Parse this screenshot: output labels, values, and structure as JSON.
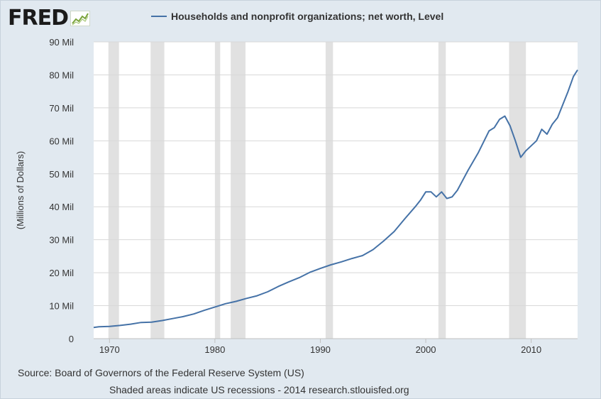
{
  "logo": {
    "text": "FRED"
  },
  "chart_data": {
    "type": "line",
    "title": "",
    "series": [
      {
        "name": "Households and nonprofit organizations; net worth, Level",
        "color": "#4572a7",
        "points": [
          [
            1968.5,
            3.4
          ],
          [
            1969,
            3.6
          ],
          [
            1970,
            3.7
          ],
          [
            1971,
            4.0
          ],
          [
            1972,
            4.4
          ],
          [
            1973,
            4.9
          ],
          [
            1974,
            5.0
          ],
          [
            1975,
            5.5
          ],
          [
            1976,
            6.1
          ],
          [
            1977,
            6.7
          ],
          [
            1978,
            7.5
          ],
          [
            1979,
            8.6
          ],
          [
            1980,
            9.6
          ],
          [
            1981,
            10.6
          ],
          [
            1982,
            11.3
          ],
          [
            1983,
            12.2
          ],
          [
            1984,
            13.0
          ],
          [
            1985,
            14.2
          ],
          [
            1986,
            15.8
          ],
          [
            1987,
            17.2
          ],
          [
            1988,
            18.5
          ],
          [
            1989,
            20.1
          ],
          [
            1990,
            21.3
          ],
          [
            1991,
            22.4
          ],
          [
            1992,
            23.3
          ],
          [
            1993,
            24.3
          ],
          [
            1994,
            25.2
          ],
          [
            1995,
            27.0
          ],
          [
            1996,
            29.6
          ],
          [
            1997,
            32.5
          ],
          [
            1998,
            36.3
          ],
          [
            1999,
            40.0
          ],
          [
            1999.5,
            42.0
          ],
          [
            2000,
            44.5
          ],
          [
            2000.5,
            44.5
          ],
          [
            2001,
            43.0
          ],
          [
            2001.5,
            44.5
          ],
          [
            2002,
            42.5
          ],
          [
            2002.5,
            43.0
          ],
          [
            2003,
            45.0
          ],
          [
            2004,
            51.0
          ],
          [
            2005,
            56.5
          ],
          [
            2006,
            63.0
          ],
          [
            2006.5,
            64.0
          ],
          [
            2007,
            66.5
          ],
          [
            2007.5,
            67.5
          ],
          [
            2008,
            64.5
          ],
          [
            2008.5,
            60.0
          ],
          [
            2009,
            55.0
          ],
          [
            2009.5,
            57.0
          ],
          [
            2010,
            58.5
          ],
          [
            2010.5,
            60.0
          ],
          [
            2011,
            63.5
          ],
          [
            2011.5,
            62.0
          ],
          [
            2012,
            65.0
          ],
          [
            2012.5,
            67.0
          ],
          [
            2013,
            71.0
          ],
          [
            2013.5,
            75.0
          ],
          [
            2014,
            79.5
          ],
          [
            2014.4,
            81.5
          ]
        ]
      }
    ],
    "xlabel": "",
    "ylabel": "(Millions of Dollars)",
    "xlim": [
      1968.5,
      2014.4
    ],
    "ylim": [
      0,
      90
    ],
    "x_ticks": [
      1970,
      1980,
      1990,
      2000,
      2010
    ],
    "x_tick_labels": [
      "1970",
      "1980",
      "1990",
      "2000",
      "2010"
    ],
    "y_ticks": [
      0,
      10,
      20,
      30,
      40,
      50,
      60,
      70,
      80,
      90
    ],
    "y_tick_labels": [
      "0",
      "10 Mil",
      "20 Mil",
      "30 Mil",
      "40 Mil",
      "50 Mil",
      "60 Mil",
      "70 Mil",
      "80 Mil",
      "90 Mil"
    ],
    "recessions": [
      [
        1969.9,
        1970.9
      ],
      [
        1973.9,
        1975.2
      ],
      [
        1980.0,
        1980.5
      ],
      [
        1981.5,
        1982.9
      ],
      [
        1990.5,
        1991.2
      ],
      [
        2001.2,
        2001.9
      ],
      [
        2007.9,
        2009.5
      ]
    ],
    "grid": true,
    "legend": "top"
  },
  "footer": {
    "source": "Source: Board of Governors of the Federal Reserve System (US)",
    "note": "Shaded areas indicate US recessions - 2014 research.stlouisfed.org"
  }
}
